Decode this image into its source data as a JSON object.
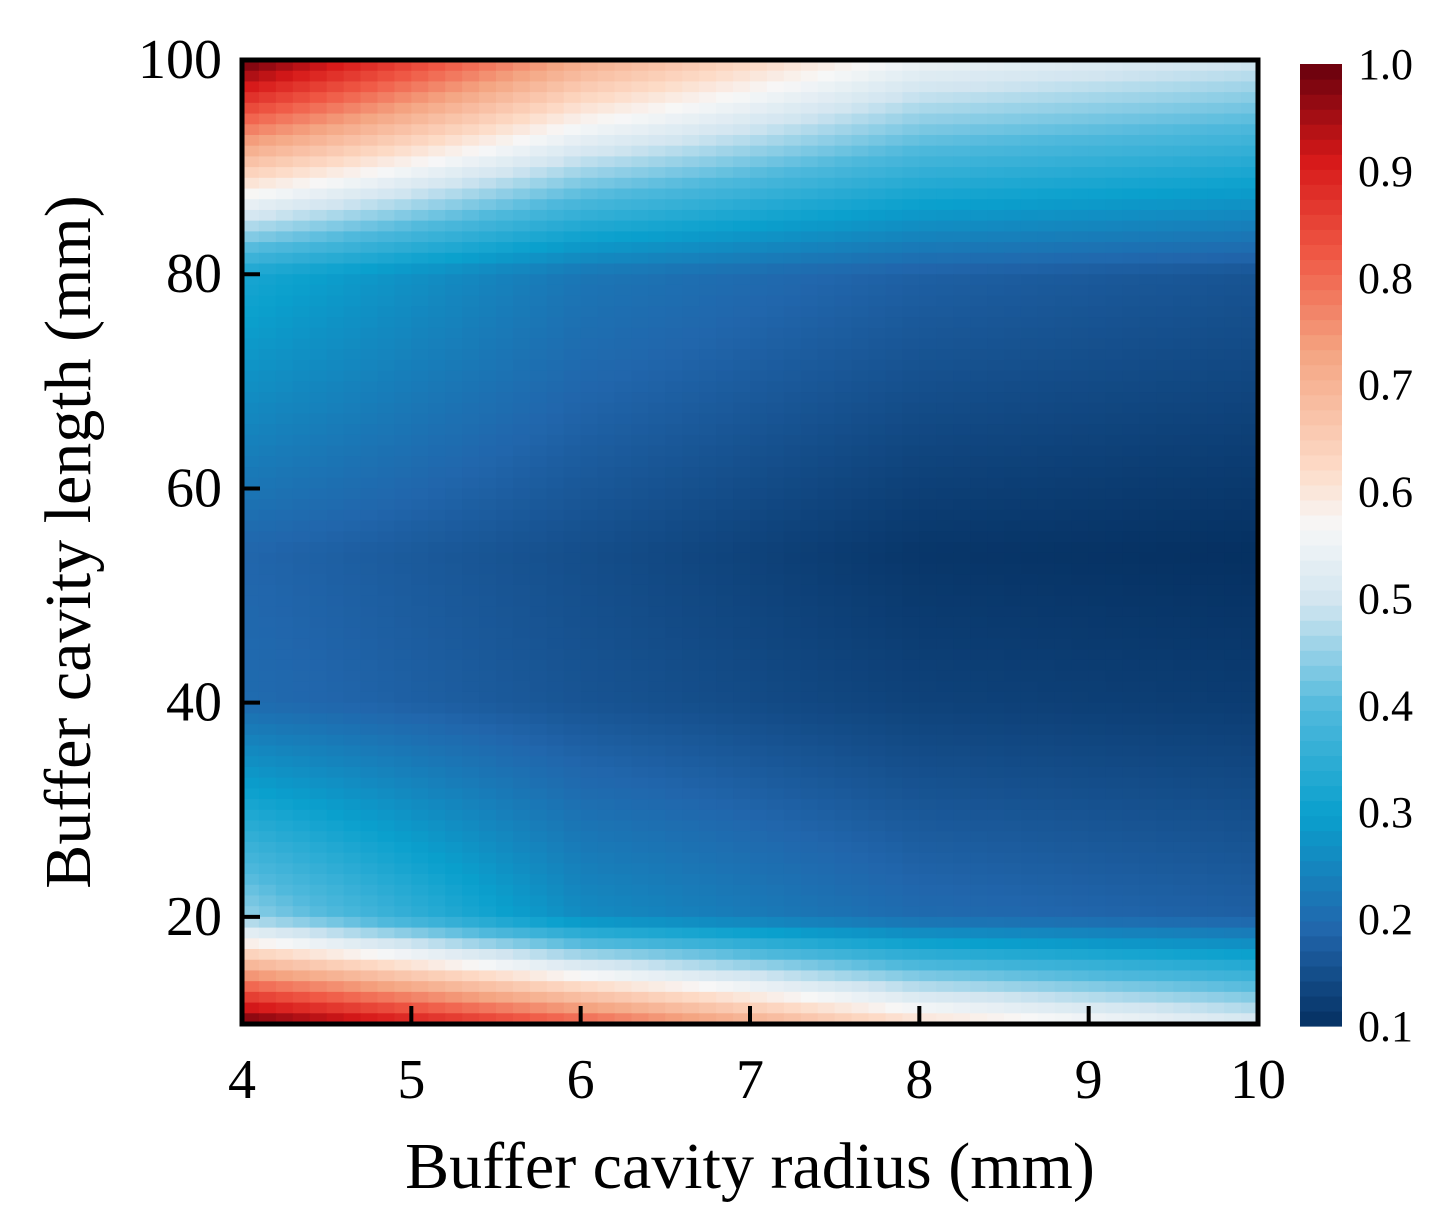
{
  "chart_data": {
    "type": "heatmap",
    "title": "",
    "xlabel": "Buffer cavity radius (mm)",
    "ylabel": "Buffer cavity length (mm)",
    "xlim": [
      4,
      10
    ],
    "ylim": [
      10,
      100
    ],
    "x_ticks": [
      "4",
      "5",
      "6",
      "7",
      "8",
      "9",
      "10"
    ],
    "y_ticks": [
      "20",
      "40",
      "60",
      "80",
      "100"
    ],
    "colorbar": {
      "range": [
        0.1,
        1.0
      ],
      "ticks": [
        "0.1",
        "0.2",
        "0.3",
        "0.4",
        "0.5",
        "0.6",
        "0.7",
        "0.8",
        "0.9",
        "1.0"
      ],
      "colormap": "RdBu_r"
    },
    "field_samples": {
      "x": [
        4,
        6,
        8,
        10
      ],
      "y": [
        10,
        20,
        40,
        54,
        80,
        100
      ],
      "z": [
        [
          1.0,
          0.82,
          0.62,
          0.52
        ],
        [
          0.45,
          0.26,
          0.2,
          0.18
        ],
        [
          0.2,
          0.16,
          0.13,
          0.12
        ],
        [
          0.19,
          0.15,
          0.11,
          0.1
        ],
        [
          0.32,
          0.22,
          0.18,
          0.16
        ],
        [
          1.0,
          0.72,
          0.55,
          0.5
        ]
      ]
    },
    "grid": false,
    "legend": "colorbar-right"
  }
}
